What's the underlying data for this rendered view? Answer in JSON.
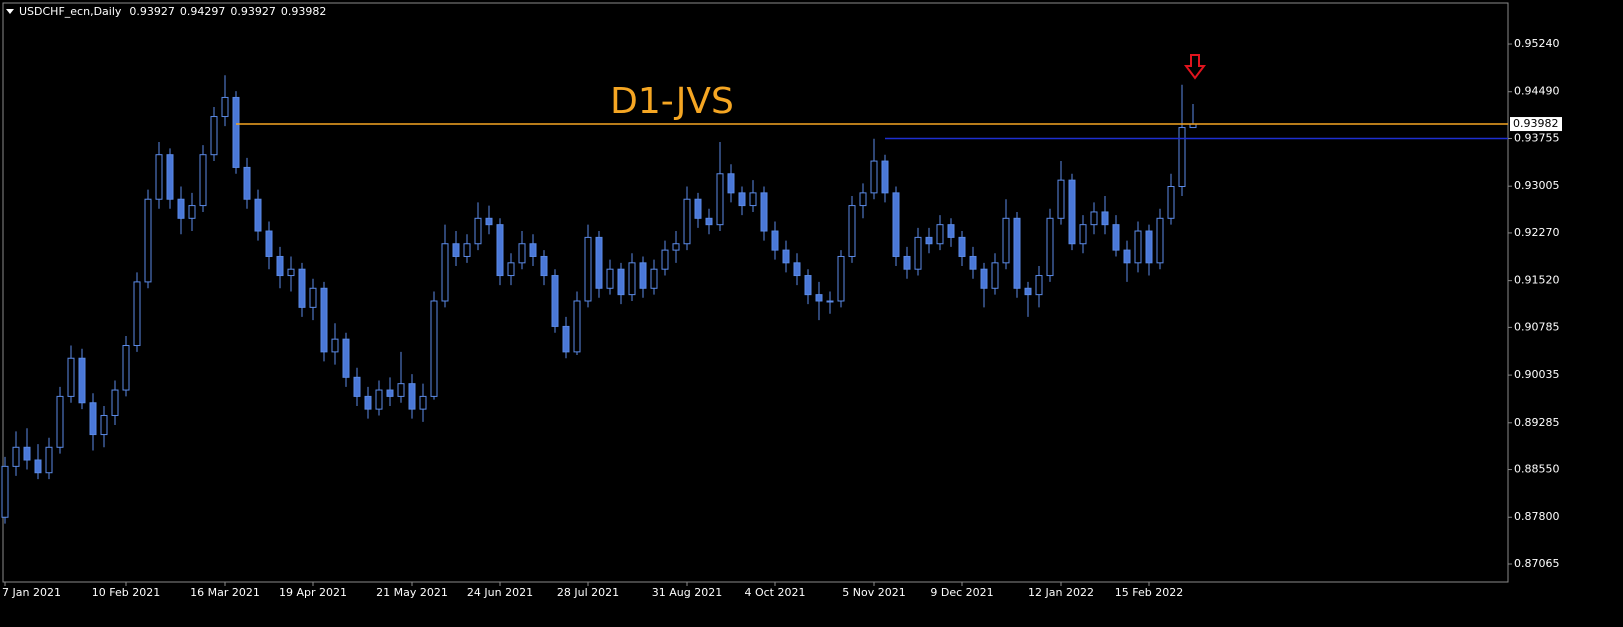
{
  "chart_data": {
    "type": "candlestick",
    "title": "USDCHF_ecn,Daily",
    "annotation": "D1-JVS",
    "categories": [
      "7 Jan 2021",
      null,
      null,
      null,
      null,
      null,
      null,
      null,
      null,
      null,
      null,
      "10 Feb 2021",
      null,
      null,
      null,
      null,
      null,
      null,
      null,
      null,
      "16 Mar 2021",
      null,
      null,
      null,
      null,
      null,
      null,
      null,
      "19 Apr 2021",
      null,
      null,
      null,
      null,
      null,
      null,
      null,
      null,
      "21 May 2021",
      null,
      null,
      null,
      null,
      null,
      null,
      null,
      "24 Jun 2021",
      null,
      null,
      null,
      null,
      null,
      null,
      null,
      "28 Jul 2021",
      null,
      null,
      null,
      null,
      null,
      null,
      null,
      null,
      "31 Aug 2021",
      null,
      null,
      null,
      null,
      null,
      null,
      null,
      "4 Oct 2021",
      null,
      null,
      null,
      null,
      null,
      null,
      null,
      null,
      "5 Nov 2021",
      null,
      null,
      null,
      null,
      null,
      null,
      null,
      "9 Dec 2021",
      null,
      null,
      null,
      null,
      null,
      null,
      null,
      null,
      "12 Jan 2022",
      null,
      null,
      null,
      null,
      null,
      null,
      null,
      "15 Feb 2022",
      null,
      null,
      null,
      null
    ],
    "series": [
      {
        "name": "USDCHF",
        "up_color": "#000000",
        "down_color": "#4a78d8",
        "color": "#5b8ae6",
        "ohlc": [
          [
            0.878,
            0.8875,
            0.877,
            0.886
          ],
          [
            0.886,
            0.8915,
            0.8845,
            0.889
          ],
          [
            0.889,
            0.892,
            0.8855,
            0.887
          ],
          [
            0.887,
            0.8895,
            0.884,
            0.885
          ],
          [
            0.885,
            0.8905,
            0.884,
            0.889
          ],
          [
            0.889,
            0.8985,
            0.888,
            0.897
          ],
          [
            0.897,
            0.905,
            0.896,
            0.903
          ],
          [
            0.903,
            0.9045,
            0.895,
            0.896
          ],
          [
            0.896,
            0.8975,
            0.8885,
            0.891
          ],
          [
            0.891,
            0.8955,
            0.889,
            0.894
          ],
          [
            0.894,
            0.8995,
            0.8925,
            0.898
          ],
          [
            0.898,
            0.9065,
            0.897,
            0.905
          ],
          [
            0.905,
            0.9165,
            0.904,
            0.915
          ],
          [
            0.915,
            0.9295,
            0.914,
            0.928
          ],
          [
            0.928,
            0.937,
            0.9265,
            0.935
          ],
          [
            0.935,
            0.936,
            0.9265,
            0.928
          ],
          [
            0.928,
            0.93,
            0.9225,
            0.925
          ],
          [
            0.925,
            0.929,
            0.923,
            0.927
          ],
          [
            0.927,
            0.9365,
            0.926,
            0.935
          ],
          [
            0.935,
            0.9425,
            0.934,
            0.941
          ],
          [
            0.941,
            0.9475,
            0.9395,
            0.944
          ],
          [
            0.944,
            0.945,
            0.932,
            0.933
          ],
          [
            0.933,
            0.9345,
            0.9265,
            0.928
          ],
          [
            0.928,
            0.9295,
            0.9215,
            0.923
          ],
          [
            0.923,
            0.9245,
            0.917,
            0.919
          ],
          [
            0.919,
            0.9205,
            0.914,
            0.916
          ],
          [
            0.916,
            0.919,
            0.9135,
            0.917
          ],
          [
            0.917,
            0.918,
            0.9095,
            0.911
          ],
          [
            0.911,
            0.9155,
            0.909,
            0.914
          ],
          [
            0.914,
            0.915,
            0.9025,
            0.904
          ],
          [
            0.904,
            0.9085,
            0.902,
            0.906
          ],
          [
            0.906,
            0.907,
            0.8985,
            0.9
          ],
          [
            0.9,
            0.9015,
            0.8955,
            0.897
          ],
          [
            0.897,
            0.8985,
            0.8935,
            0.895
          ],
          [
            0.895,
            0.8995,
            0.894,
            0.898
          ],
          [
            0.898,
            0.9,
            0.8955,
            0.897
          ],
          [
            0.897,
            0.904,
            0.896,
            0.899
          ],
          [
            0.899,
            0.9005,
            0.8935,
            0.895
          ],
          [
            0.895,
            0.899,
            0.893,
            0.897
          ],
          [
            0.897,
            0.9135,
            0.8965,
            0.912
          ],
          [
            0.912,
            0.924,
            0.911,
            0.921
          ],
          [
            0.921,
            0.923,
            0.9175,
            0.919
          ],
          [
            0.919,
            0.9225,
            0.918,
            0.921
          ],
          [
            0.921,
            0.9275,
            0.92,
            0.925
          ],
          [
            0.925,
            0.927,
            0.9225,
            0.924
          ],
          [
            0.924,
            0.925,
            0.9145,
            0.916
          ],
          [
            0.916,
            0.9195,
            0.9145,
            0.918
          ],
          [
            0.918,
            0.923,
            0.917,
            0.921
          ],
          [
            0.921,
            0.9225,
            0.9175,
            0.919
          ],
          [
            0.919,
            0.92,
            0.9145,
            0.916
          ],
          [
            0.916,
            0.917,
            0.907,
            0.908
          ],
          [
            0.908,
            0.9095,
            0.903,
            0.904
          ],
          [
            0.904,
            0.9135,
            0.9035,
            0.912
          ],
          [
            0.912,
            0.924,
            0.911,
            0.922
          ],
          [
            0.922,
            0.923,
            0.9125,
            0.914
          ],
          [
            0.914,
            0.9185,
            0.913,
            0.917
          ],
          [
            0.917,
            0.918,
            0.9115,
            0.913
          ],
          [
            0.913,
            0.9195,
            0.912,
            0.918
          ],
          [
            0.918,
            0.919,
            0.9125,
            0.914
          ],
          [
            0.914,
            0.9185,
            0.913,
            0.917
          ],
          [
            0.917,
            0.9215,
            0.916,
            0.92
          ],
          [
            0.92,
            0.923,
            0.918,
            0.921
          ],
          [
            0.921,
            0.93,
            0.92,
            0.928
          ],
          [
            0.928,
            0.929,
            0.9235,
            0.925
          ],
          [
            0.925,
            0.9265,
            0.9225,
            0.924
          ],
          [
            0.924,
            0.937,
            0.923,
            0.932
          ],
          [
            0.932,
            0.9335,
            0.9275,
            0.929
          ],
          [
            0.929,
            0.93,
            0.9255,
            0.927
          ],
          [
            0.927,
            0.931,
            0.926,
            0.929
          ],
          [
            0.929,
            0.93,
            0.9215,
            0.923
          ],
          [
            0.923,
            0.9245,
            0.9185,
            0.92
          ],
          [
            0.92,
            0.9215,
            0.9165,
            0.918
          ],
          [
            0.918,
            0.9195,
            0.9145,
            0.916
          ],
          [
            0.916,
            0.917,
            0.9115,
            0.913
          ],
          [
            0.913,
            0.915,
            0.909,
            0.912
          ],
          [
            0.912,
            0.9135,
            0.91,
            0.912
          ],
          [
            0.912,
            0.92,
            0.911,
            0.919
          ],
          [
            0.919,
            0.9285,
            0.918,
            0.927
          ],
          [
            0.927,
            0.9305,
            0.925,
            0.929
          ],
          [
            0.929,
            0.9375,
            0.928,
            0.934
          ],
          [
            0.934,
            0.935,
            0.9275,
            0.929
          ],
          [
            0.929,
            0.93,
            0.9175,
            0.919
          ],
          [
            0.919,
            0.9205,
            0.9155,
            0.917
          ],
          [
            0.917,
            0.9235,
            0.916,
            0.922
          ],
          [
            0.922,
            0.9235,
            0.9195,
            0.921
          ],
          [
            0.921,
            0.9255,
            0.92,
            0.924
          ],
          [
            0.924,
            0.925,
            0.9205,
            0.922
          ],
          [
            0.922,
            0.923,
            0.9175,
            0.919
          ],
          [
            0.919,
            0.9205,
            0.9155,
            0.917
          ],
          [
            0.917,
            0.918,
            0.911,
            0.914
          ],
          [
            0.914,
            0.9195,
            0.913,
            0.918
          ],
          [
            0.918,
            0.928,
            0.917,
            0.925
          ],
          [
            0.925,
            0.926,
            0.9125,
            0.914
          ],
          [
            0.914,
            0.915,
            0.9095,
            0.913
          ],
          [
            0.913,
            0.9175,
            0.911,
            0.916
          ],
          [
            0.916,
            0.9265,
            0.915,
            0.925
          ],
          [
            0.925,
            0.934,
            0.924,
            0.931
          ],
          [
            0.931,
            0.932,
            0.92,
            0.921
          ],
          [
            0.921,
            0.9255,
            0.9195,
            0.924
          ],
          [
            0.924,
            0.9275,
            0.9225,
            0.926
          ],
          [
            0.926,
            0.9285,
            0.9225,
            0.924
          ],
          [
            0.924,
            0.9255,
            0.919,
            0.92
          ],
          [
            0.92,
            0.9215,
            0.915,
            0.918
          ],
          [
            0.918,
            0.9245,
            0.9165,
            0.923
          ],
          [
            0.923,
            0.924,
            0.916,
            0.918
          ],
          [
            0.918,
            0.9265,
            0.917,
            0.925
          ],
          [
            0.925,
            0.932,
            0.924,
            0.93
          ],
          [
            0.93,
            0.946,
            0.9285,
            0.93927
          ],
          [
            0.93927,
            0.94297,
            0.93927,
            0.93982
          ]
        ]
      }
    ],
    "levels": [
      {
        "value": 0.93982,
        "color": "#f5a623",
        "from_bar": 21
      },
      {
        "value": 0.93755,
        "color": "#1e2fd0",
        "from_bar": 80
      }
    ],
    "last_price": 0.93982,
    "ylim": [
      0.86782,
      0.95885
    ],
    "yticks": [
      {
        "value": 0.9524,
        "label": "0.95240"
      },
      {
        "value": 0.9449,
        "label": "0.94490"
      },
      0.93755,
      0.93005,
      {
        "value": 0.9227,
        "label": "0.92270"
      },
      {
        "value": 0.9152,
        "label": "0.91520"
      },
      0.90785,
      0.90035,
      0.89285,
      {
        "value": 0.8855,
        "label": "0.88550"
      },
      {
        "value": 0.878,
        "label": "0.87800"
      },
      0.87065
    ],
    "grid": false
  }
}
